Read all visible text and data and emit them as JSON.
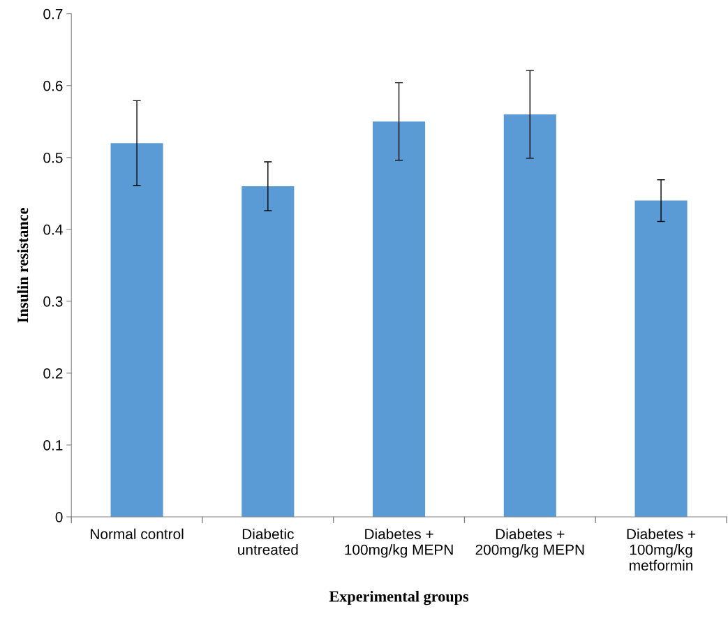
{
  "chart_data": {
    "type": "bar",
    "xlabel": "Experimental groups",
    "ylabel": "Insulin resistance",
    "categories": [
      "Normal control",
      "Diabetic\nuntreated",
      "Diabetes +\n100mg/kg MEPN",
      "Diabetes +\n200mg/kg MEPN",
      "Diabetes +\n100mg/kg\nmetformin"
    ],
    "values": [
      0.52,
      0.46,
      0.55,
      0.56,
      0.44
    ],
    "errors": [
      0.059,
      0.034,
      0.054,
      0.061,
      0.029
    ],
    "color": "#5b9bd5",
    "ylim": [
      0,
      0.7
    ],
    "yticks": [
      0,
      0.1,
      0.2,
      0.3,
      0.4,
      0.5,
      0.6,
      0.7
    ],
    "grid": false
  }
}
